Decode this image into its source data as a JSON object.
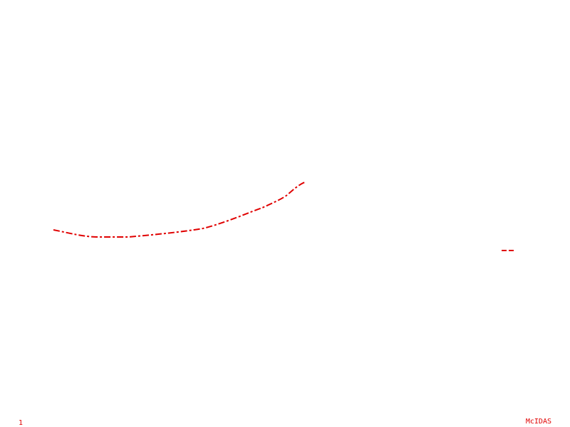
{
  "frame_number": "1",
  "product_label": "McIDAS",
  "colors": {
    "background": "#ffffff",
    "contour": "#e00000",
    "text": "#e00000"
  }
}
